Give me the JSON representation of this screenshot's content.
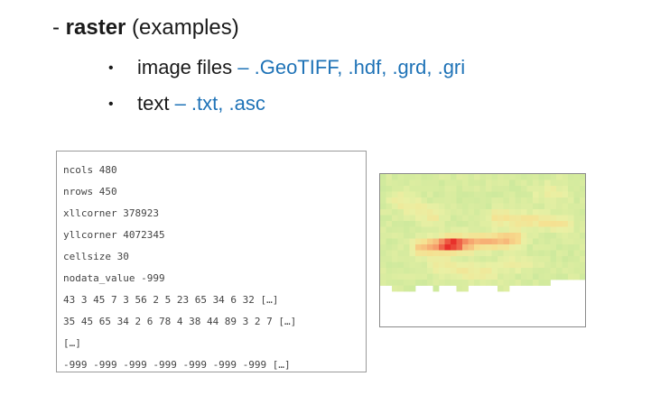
{
  "heading": {
    "dash": "- ",
    "term": "raster",
    "note": " (examples)"
  },
  "bullets": [
    {
      "marker": "•",
      "label": "image files",
      "formats": " – .GeoTIFF, .hdf, .grd, .gri"
    },
    {
      "marker": "•",
      "label": "text",
      "formats": " – .txt, .asc"
    }
  ],
  "ascii_grid_example": {
    "lines": [
      "ncols 480",
      "nrows 450",
      "xllcorner 378923",
      "yllcorner 4072345",
      "cellsize 30",
      "nodata_value -999",
      "43 3 45 7 3 56 2 5 23 65 34 6 32 […]",
      "35 45 65 34 2 6 78 4 38 44 89 3 2 7 […]",
      "[…]",
      "-999 -999 -999 -999 -999 -999 -999 […]"
    ]
  },
  "raster_image": {
    "palette": {
      "low": "#c5e79a",
      "mid_low": "#e9f0a4",
      "mid": "#f7df8f",
      "mid_high": "#f7a56f",
      "high": "#e8302b",
      "nodata": "#ffffff"
    }
  }
}
